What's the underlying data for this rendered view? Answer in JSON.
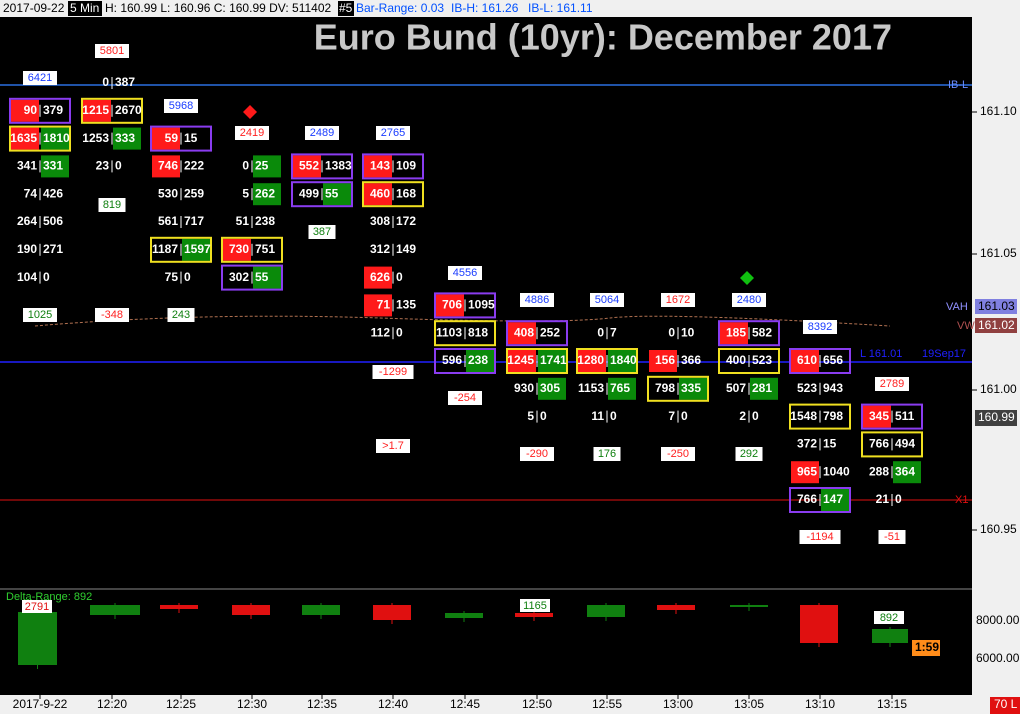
{
  "header": {
    "date": "2017-09-22",
    "interval": "5 Min",
    "ohlc": "H: 160.99 L: 160.96 C: 160.99 DV: 511402",
    "chart_id": "#5",
    "bar_range": "Bar-Range: 0.03",
    "ib_high": "IB-H: 161.26",
    "ib_low": "IB-L: 161.11"
  },
  "title": "Euro Bund (10yr): December 2017",
  "price_axis": [
    "161.10",
    "161.05",
    "161.00",
    "160.95"
  ],
  "markers": {
    "ib_low": "IB-L",
    "vah": "VAH",
    "vah_price": "161.03",
    "vwap": "VW",
    "vwap_price": "161.02",
    "last_price": "160.99",
    "x1": "X1",
    "level": "L 161.01",
    "level_date": "19Sep17"
  },
  "time_axis": [
    "2017-9-22",
    "12:20",
    "12:25",
    "12:30",
    "12:35",
    "12:40",
    "12:45",
    "12:50",
    "12:55",
    "13:00",
    "13:05",
    "13:10",
    "13:15"
  ],
  "delta_panel": {
    "title": "Delta-Range: 892",
    "ticks": [
      "8000.00",
      "6000.00"
    ],
    "labels": [
      "2791",
      "1165",
      "892"
    ],
    "timer": "1:59",
    "status": "70 L"
  },
  "columns": [
    {
      "rows": [
        null,
        {
          "bid": "90",
          "ask": "379",
          "fill": "bid",
          "box": "purple"
        },
        {
          "bid": "1635",
          "ask": "1810",
          "fill": "both",
          "box": "yellow"
        },
        {
          "bid": "341",
          "ask": "331",
          "fill": "ask"
        },
        {
          "bid": "74",
          "ask": "426"
        },
        {
          "bid": "264",
          "ask": "506"
        },
        {
          "bid": "190",
          "ask": "271"
        },
        {
          "bid": "104",
          "ask": "0"
        }
      ],
      "notes": [
        {
          "text": "6421",
          "color": "blue"
        },
        {
          "text": "1025",
          "color": "green"
        }
      ]
    },
    {
      "rows": [
        {
          "bid": "0",
          "ask": "387"
        },
        {
          "bid": "1215",
          "ask": "2670",
          "fill": "bid",
          "box": "yellow"
        },
        {
          "bid": "1253",
          "ask": "333",
          "fill": "ask"
        },
        {
          "bid": "23",
          "ask": "0"
        }
      ],
      "notes": [
        {
          "text": "5801",
          "color": "red"
        },
        {
          "text": "819",
          "color": "green"
        },
        {
          "text": "-348",
          "color": "red"
        }
      ]
    },
    {
      "rows": [
        null,
        null,
        {
          "bid": "59",
          "ask": "15",
          "fill": "bid",
          "box": "purple"
        },
        {
          "bid": "746",
          "ask": "222",
          "fill": "bid"
        },
        {
          "bid": "530",
          "ask": "259"
        },
        {
          "bid": "561",
          "ask": "717"
        },
        {
          "bid": "1187",
          "ask": "1597",
          "fill": "ask",
          "box": "yellow"
        },
        {
          "bid": "75",
          "ask": "0"
        }
      ],
      "notes": [
        {
          "text": "5968",
          "color": "blue"
        },
        {
          "text": "243",
          "color": "green"
        }
      ]
    },
    {
      "rows": [
        null,
        null,
        null,
        {
          "bid": "0",
          "ask": "25",
          "fill": "ask"
        },
        {
          "bid": "5",
          "ask": "262",
          "fill": "ask"
        },
        {
          "bid": "51",
          "ask": "238"
        },
        {
          "bid": "730",
          "ask": "751",
          "fill": "bid",
          "box": "yellow"
        },
        {
          "bid": "302",
          "ask": "55",
          "fill": "ask",
          "box": "purple"
        }
      ],
      "notes": [
        {
          "text": "2419",
          "color": "red"
        }
      ]
    },
    {
      "rows": [
        null,
        null,
        null,
        {
          "bid": "552",
          "ask": "1383",
          "fill": "bid",
          "box": "purple"
        },
        {
          "bid": "499",
          "ask": "55",
          "fill": "ask",
          "box": "purple"
        }
      ],
      "notes": [
        {
          "text": "2489",
          "color": "blue"
        },
        {
          "text": "387",
          "color": "green"
        }
      ]
    },
    {
      "rows": [
        null,
        null,
        null,
        {
          "bid": "143",
          "ask": "109",
          "fill": "bid",
          "box": "purple"
        },
        {
          "bid": "460",
          "ask": "168",
          "fill": "bid",
          "box": "yellow"
        },
        {
          "bid": "308",
          "ask": "172"
        },
        {
          "bid": "312",
          "ask": "149"
        },
        {
          "bid": "626",
          "ask": "0",
          "fill": "bid"
        },
        {
          "bid": "71",
          "ask": "135",
          "fill": "bid"
        },
        {
          "bid": "112",
          "ask": "0"
        }
      ],
      "notes": [
        {
          "text": "2765",
          "color": "blue"
        },
        {
          "text": "-1299",
          "color": "red"
        },
        {
          "text": ">1.7",
          "color": "red"
        }
      ]
    },
    {
      "rows": [
        null,
        null,
        null,
        null,
        null,
        null,
        null,
        null,
        {
          "bid": "706",
          "ask": "1095",
          "fill": "bid",
          "box": "purple"
        },
        {
          "bid": "1103",
          "ask": "818",
          "box": "yellow"
        },
        {
          "bid": "596",
          "ask": "238",
          "fill": "ask",
          "box": "purple"
        }
      ],
      "notes": [
        {
          "text": "4556",
          "color": "blue"
        },
        {
          "text": "-254",
          "color": "red"
        }
      ]
    },
    {
      "rows": [
        null,
        null,
        null,
        null,
        null,
        null,
        null,
        null,
        null,
        {
          "bid": "408",
          "ask": "252",
          "fill": "bid",
          "box": "purple"
        },
        {
          "bid": "1245",
          "ask": "1741",
          "fill": "both",
          "box": "yellow"
        },
        {
          "bid": "930",
          "ask": "305",
          "fill": "ask"
        },
        {
          "bid": "5",
          "ask": "0"
        }
      ],
      "notes": [
        {
          "text": "4886",
          "color": "blue"
        },
        {
          "text": "-290",
          "color": "red"
        }
      ]
    },
    {
      "rows": [
        null,
        null,
        null,
        null,
        null,
        null,
        null,
        null,
        null,
        {
          "bid": "0",
          "ask": "7"
        },
        {
          "bid": "1280",
          "ask": "1840",
          "fill": "both",
          "box": "yellow"
        },
        {
          "bid": "1153",
          "ask": "765",
          "fill": "ask"
        },
        {
          "bid": "11",
          "ask": "0"
        }
      ],
      "notes": [
        {
          "text": "5064",
          "color": "blue"
        },
        {
          "text": "176",
          "color": "green"
        }
      ]
    },
    {
      "rows": [
        null,
        null,
        null,
        null,
        null,
        null,
        null,
        null,
        null,
        {
          "bid": "0",
          "ask": "10"
        },
        {
          "bid": "156",
          "ask": "366",
          "fill": "bid"
        },
        {
          "bid": "798",
          "ask": "335",
          "fill": "ask",
          "box": "yellow"
        },
        {
          "bid": "7",
          "ask": "0"
        }
      ],
      "notes": [
        {
          "text": "1672",
          "color": "red"
        },
        {
          "text": "-250",
          "color": "red"
        }
      ]
    },
    {
      "rows": [
        null,
        null,
        null,
        null,
        null,
        null,
        null,
        null,
        null,
        {
          "bid": "185",
          "ask": "582",
          "fill": "bid",
          "box": "purple"
        },
        {
          "bid": "400",
          "ask": "523",
          "box": "yellow"
        },
        {
          "bid": "507",
          "ask": "281",
          "fill": "ask"
        },
        {
          "bid": "2",
          "ask": "0"
        }
      ],
      "notes": [
        {
          "text": "2480",
          "color": "blue"
        },
        {
          "text": "292",
          "color": "green"
        }
      ]
    },
    {
      "rows": [
        null,
        null,
        null,
        null,
        null,
        null,
        null,
        null,
        null,
        null,
        {
          "bid": "610",
          "ask": "656",
          "fill": "bid",
          "box": "purple"
        },
        {
          "bid": "523",
          "ask": "943"
        },
        {
          "bid": "1548",
          "ask": "798",
          "box": "yellow"
        },
        {
          "bid": "372",
          "ask": "15"
        },
        {
          "bid": "965",
          "ask": "1040",
          "fill": "bid"
        },
        {
          "bid": "766",
          "ask": "147",
          "fill": "ask",
          "box": "purple"
        }
      ],
      "notes": [
        {
          "text": "8392",
          "color": "blue"
        },
        {
          "text": "-1194",
          "color": "red"
        }
      ]
    },
    {
      "rows": [
        null,
        null,
        null,
        null,
        null,
        null,
        null,
        null,
        null,
        null,
        null,
        null,
        {
          "bid": "345",
          "ask": "511",
          "fill": "bid",
          "box": "purple"
        },
        {
          "bid": "766",
          "ask": "494",
          "box": "yellow"
        },
        {
          "bid": "288",
          "ask": "364",
          "fill": "ask"
        },
        {
          "bid": "21",
          "ask": "0"
        }
      ],
      "notes": [
        {
          "text": "2789",
          "color": "red"
        },
        {
          "text": "-51",
          "color": "red"
        }
      ]
    }
  ]
}
